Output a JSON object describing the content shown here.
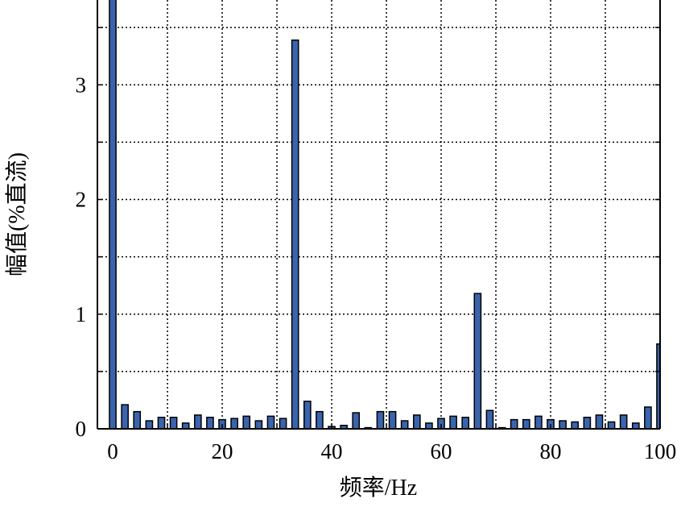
{
  "chart_data": {
    "type": "bar",
    "title": "",
    "xlabel": "频率/Hz",
    "ylabel": "幅值(%直流)",
    "xlim": [
      -2.8,
      100
    ],
    "ylim": [
      0,
      3.74
    ],
    "xticks": [
      0,
      20,
      40,
      60,
      80,
      100
    ],
    "yticks": [
      0,
      1,
      2,
      3
    ],
    "grid": true,
    "bar_color": "#3a64ad",
    "bar_width_hz": 1.2,
    "x": [
      0,
      2.22,
      4.44,
      6.67,
      8.89,
      11.11,
      13.33,
      15.56,
      17.78,
      20,
      22.22,
      24.44,
      26.67,
      28.89,
      31.11,
      33.33,
      35.56,
      37.78,
      40,
      42.22,
      44.44,
      46.67,
      48.89,
      51.11,
      53.33,
      55.56,
      57.78,
      60,
      62.22,
      64.44,
      66.67,
      68.89,
      71.11,
      73.33,
      75.56,
      77.78,
      80,
      82.22,
      84.44,
      86.67,
      88.89,
      91.11,
      93.33,
      95.56,
      97.78,
      100
    ],
    "values": [
      3.8,
      0.21,
      0.15,
      0.07,
      0.1,
      0.1,
      0.05,
      0.12,
      0.1,
      0.08,
      0.09,
      0.11,
      0.07,
      0.11,
      0.09,
      3.39,
      0.24,
      0.15,
      0.02,
      0.03,
      0.14,
      0.01,
      0.15,
      0.15,
      0.07,
      0.12,
      0.05,
      0.09,
      0.11,
      0.1,
      1.18,
      0.16,
      0.01,
      0.08,
      0.08,
      0.11,
      0.08,
      0.07,
      0.06,
      0.1,
      0.12,
      0.06,
      0.12,
      0.05,
      0.19,
      0.74
    ]
  }
}
